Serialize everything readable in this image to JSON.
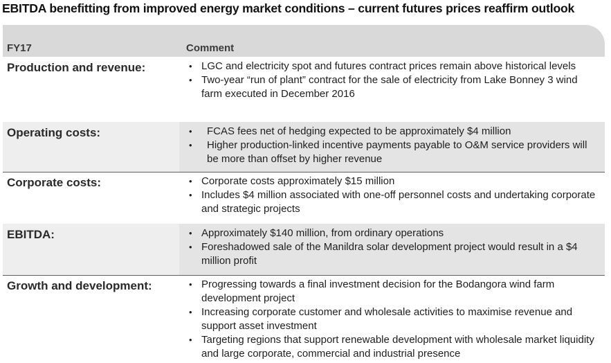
{
  "title": "EBITDA benefitting from improved energy market conditions – current futures prices reaffirm outlook",
  "header": {
    "col1": "FY17",
    "col2": "Comment"
  },
  "rows": [
    {
      "label": "Production and revenue:",
      "bullets": [
        "LGC and electricity spot and futures contract prices remain above historical levels",
        "Two-year “run of plant” contract for the sale of electricity from Lake Bonney 3 wind farm executed in December 2016"
      ]
    },
    {
      "label": "Operating costs:",
      "bullets": [
        "FCAS fees net of hedging expected to be approximately $4 million",
        "Higher production-linked incentive payments payable to O&M service providers will be more than offset by higher revenue"
      ]
    },
    {
      "label": "Corporate costs:",
      "bullets": [
        "Corporate costs approximately $15 million",
        "Includes $4 million associated with one-off personnel costs and undertaking corporate and strategic projects"
      ]
    },
    {
      "label": "EBITDA:",
      "bullets": [
        "Approximately $140 million, from ordinary operations",
        "Foreshadowed sale of the Manildra solar development project would result in a $4 million profit"
      ]
    },
    {
      "label": "Growth and development:",
      "bullets": [
        "Progressing towards a final investment decision for the Bodangora wind farm development project",
        "Increasing corporate customer and wholesale activities to maximise revenue and support asset investment",
        "Targeting regions that support renewable development with wholesale market liquidity and large corporate, commercial and industrial presence"
      ]
    }
  ]
}
